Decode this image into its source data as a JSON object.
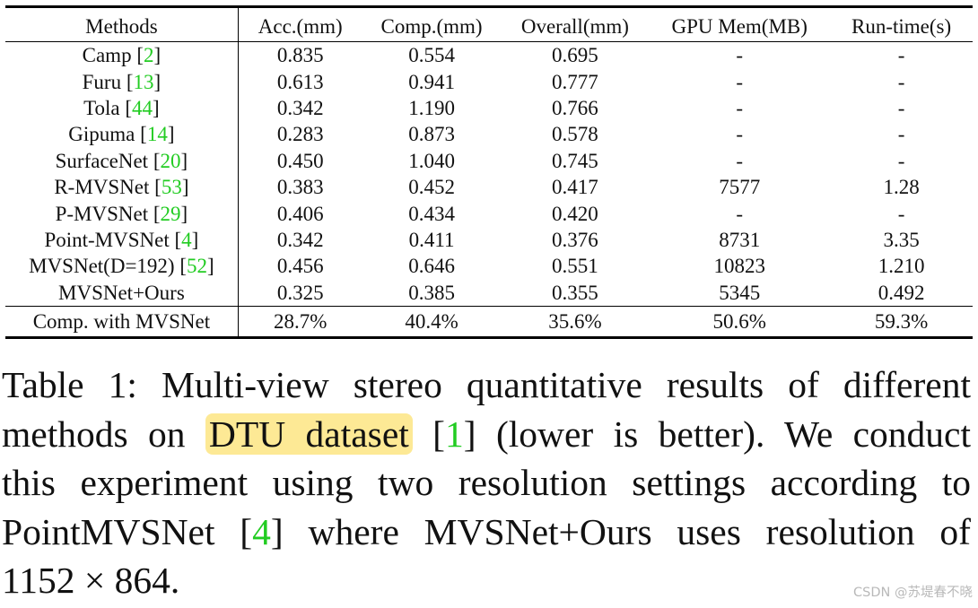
{
  "table": {
    "headers": [
      "Methods",
      "Acc.(mm)",
      "Comp.(mm)",
      "Overall(mm)",
      "GPU Mem(MB)",
      "Run-time(s)"
    ],
    "rows": [
      {
        "method": "Camp",
        "ref": "2",
        "acc": "0.835",
        "comp": "0.554",
        "overall": "0.695",
        "gpu": "-",
        "runtime": "-"
      },
      {
        "method": "Furu",
        "ref": "13",
        "acc": "0.613",
        "comp": "0.941",
        "overall": "0.777",
        "gpu": "-",
        "runtime": "-"
      },
      {
        "method": "Tola",
        "ref": "44",
        "acc": "0.342",
        "comp": "1.190",
        "overall": "0.766",
        "gpu": "-",
        "runtime": "-"
      },
      {
        "method": "Gipuma",
        "ref": "14",
        "acc": "0.283",
        "comp": "0.873",
        "overall": "0.578",
        "gpu": "-",
        "runtime": "-"
      },
      {
        "method": "SurfaceNet",
        "ref": "20",
        "acc": "0.450",
        "comp": "1.040",
        "overall": "0.745",
        "gpu": "-",
        "runtime": "-"
      },
      {
        "method": "R-MVSNet",
        "ref": "53",
        "acc": "0.383",
        "comp": "0.452",
        "overall": "0.417",
        "gpu": "7577",
        "runtime": "1.28"
      },
      {
        "method": "P-MVSNet",
        "ref": "29",
        "acc": "0.406",
        "comp": "0.434",
        "overall": "0.420",
        "gpu": "-",
        "runtime": "-"
      },
      {
        "method": "Point-MVSNet",
        "ref": "4",
        "acc": "0.342",
        "comp": "0.411",
        "overall": "0.376",
        "gpu": "8731",
        "runtime": "3.35"
      },
      {
        "method": "MVSNet(D=192)",
        "ref": "52",
        "acc": "0.456",
        "comp": "0.646",
        "overall": "0.551",
        "gpu": "10823",
        "runtime": "1.210"
      },
      {
        "method": "MVSNet+Ours",
        "ref": "",
        "acc": "0.325",
        "comp": "0.385",
        "overall": "0.355",
        "gpu": "5345",
        "runtime": "0.492"
      }
    ],
    "footer": {
      "method": "Comp. with MVSNet",
      "acc": "28.7%",
      "comp": "40.4%",
      "overall": "35.6%",
      "gpu": "50.6%",
      "runtime": "59.3%"
    }
  },
  "caption": {
    "line1": "Table 1: Multi-view stereo quantitative results of different",
    "line2_pre": "methods on ",
    "line2_highlight": "DTU dataset",
    "line2_ref": "1",
    "line2_post": " (lower is better). We conduct",
    "line3": "this experiment using two resolution settings according to",
    "line4_pre": "PointMVSNet ",
    "line4_ref": "4",
    "line4_post": " where MVSNet+Ours uses resolution of",
    "line5": "1152 × 864."
  },
  "watermark": "CSDN @苏堤春不晓",
  "colors": {
    "citation": "#22cc22",
    "highlight": "#fde995"
  }
}
